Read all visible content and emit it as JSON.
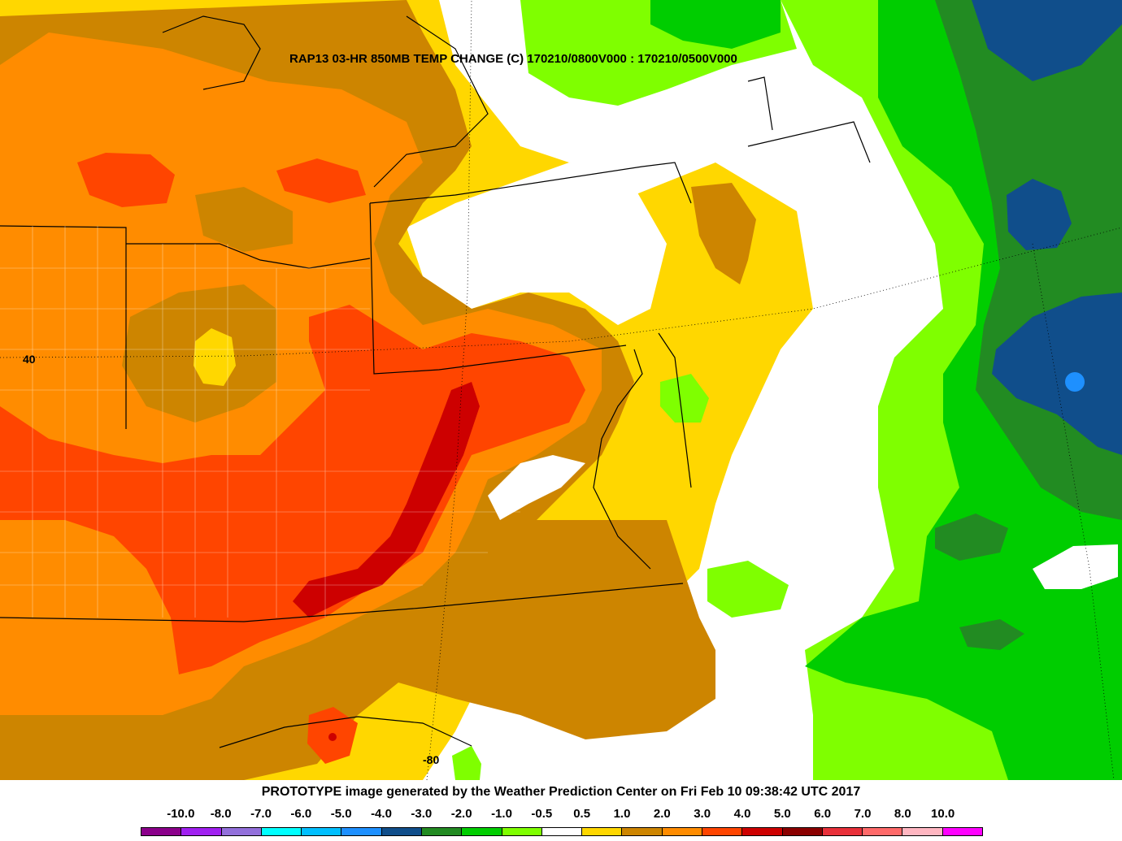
{
  "title": "RAP13 03-HR 850MB TEMP CHANGE (C) 170210/0800V000 : 170210/0500V000",
  "graticule": {
    "lat_label": "40",
    "lon_label": "-80"
  },
  "credit": "PROTOTYPE image generated by the Weather Prediction Center on Fri Feb 10 09:38:42 UTC 2017",
  "legend": {
    "labels": [
      "-10.0",
      "-8.0",
      "-7.0",
      "-6.0",
      "-5.0",
      "-4.0",
      "-3.0",
      "-2.0",
      "-1.0",
      "-0.5",
      "0.5",
      "1.0",
      "2.0",
      "3.0",
      "4.0",
      "5.0",
      "6.0",
      "7.0",
      "8.0",
      "10.0"
    ],
    "colors": [
      "#8b008b",
      "#a020f0",
      "#9370db",
      "#00ffff",
      "#00bfff",
      "#1e90ff",
      "#104e8b",
      "#228b22",
      "#00cd00",
      "#7fff00",
      "#ffffff",
      "#ffd700",
      "#cd8500",
      "#ff8c00",
      "#ff4500",
      "#cd0000",
      "#8b0000",
      "#e8303a",
      "#ff6a6a",
      "#ffb6c1",
      "#ff00ff"
    ]
  }
}
